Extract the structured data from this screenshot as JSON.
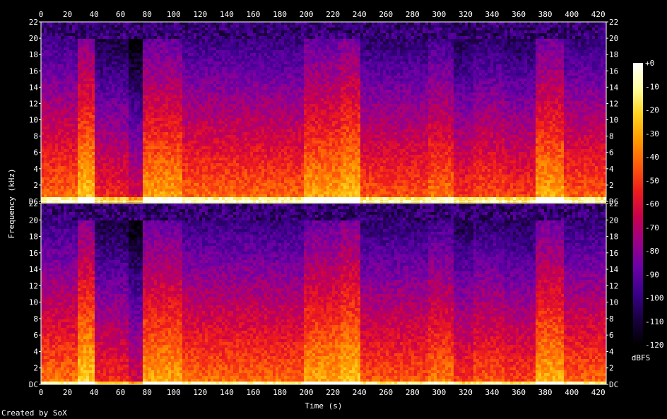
{
  "credit": "Created by SoX",
  "chart_data": {
    "type": "heatmap",
    "subtype": "spectrogram",
    "channels": 2,
    "xlabel": "Time (s)",
    "ylabel": "Frequency (kHz)",
    "xlim": [
      0,
      426
    ],
    "ylim": [
      0,
      22
    ],
    "x_ticks": [
      "0",
      "20",
      "40",
      "60",
      "80",
      "100",
      "120",
      "140",
      "160",
      "180",
      "200",
      "220",
      "240",
      "260",
      "280",
      "300",
      "320",
      "340",
      "360",
      "380",
      "400",
      "420"
    ],
    "y_ticks": [
      "DC",
      "2",
      "4",
      "6",
      "8",
      "10",
      "12",
      "14",
      "16",
      "18",
      "20",
      "22"
    ],
    "colorbar": {
      "label": "dBFS",
      "range": [
        -120,
        0
      ],
      "ticks": [
        "+0",
        "-10",
        "-20",
        "-30",
        "-40",
        "-50",
        "-60",
        "-70",
        "-80",
        "-90",
        "-100",
        "-110",
        "-120"
      ]
    },
    "colormap": [
      "#000000",
      "#1a0040",
      "#3a008a",
      "#6a00a8",
      "#9b0088",
      "#c8004d",
      "#ee1c1c",
      "#ff5a0a",
      "#ff9a00",
      "#ffd21e",
      "#ffff9e",
      "#ffffff"
    ],
    "content_cutoff_khz": 20,
    "segments": [
      {
        "t": [
          0,
          27
        ],
        "level": 0.55
      },
      {
        "t": [
          27,
          39
        ],
        "level": 0.74
      },
      {
        "t": [
          39,
          66
        ],
        "level": 0.42
      },
      {
        "t": [
          66,
          76
        ],
        "level": 0.3
      },
      {
        "t": [
          76,
          105
        ],
        "level": 0.66
      },
      {
        "t": [
          105,
          170
        ],
        "level": 0.54
      },
      {
        "t": [
          170,
          196
        ],
        "level": 0.53
      },
      {
        "t": [
          196,
          225
        ],
        "level": 0.66
      },
      {
        "t": [
          225,
          240
        ],
        "level": 0.72
      },
      {
        "t": [
          240,
          290
        ],
        "level": 0.5
      },
      {
        "t": [
          290,
          310
        ],
        "level": 0.57
      },
      {
        "t": [
          310,
          325
        ],
        "level": 0.44
      },
      {
        "t": [
          325,
          348
        ],
        "level": 0.5
      },
      {
        "t": [
          348,
          372
        ],
        "level": 0.46
      },
      {
        "t": [
          372,
          392
        ],
        "level": 0.68
      },
      {
        "t": [
          392,
          426
        ],
        "level": 0.52
      }
    ]
  }
}
